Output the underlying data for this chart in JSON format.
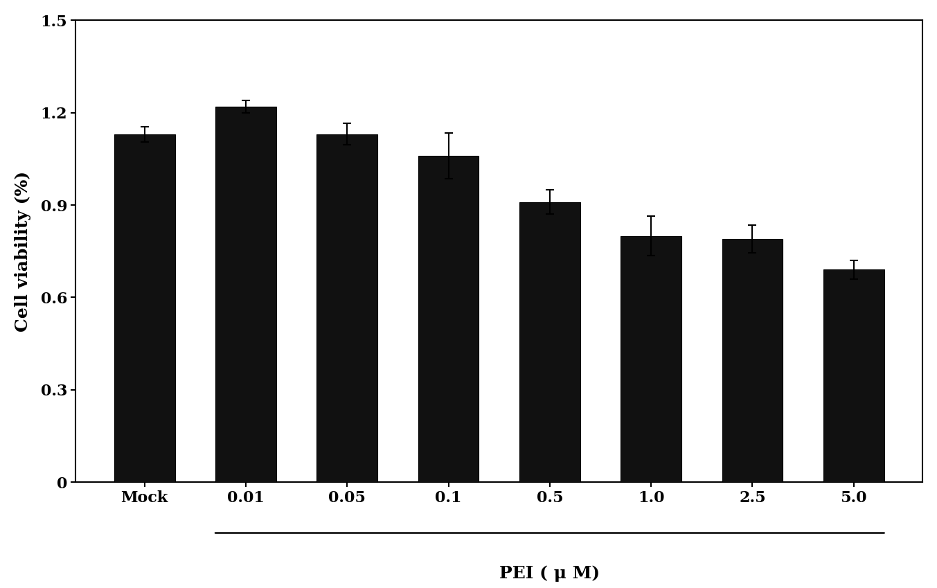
{
  "categories": [
    "Mock",
    "0.01",
    "0.05",
    "0.1",
    "0.5",
    "1.0",
    "2.5",
    "5.0"
  ],
  "values": [
    1.13,
    1.22,
    1.13,
    1.06,
    0.91,
    0.8,
    0.79,
    0.69
  ],
  "errors": [
    0.025,
    0.02,
    0.035,
    0.075,
    0.04,
    0.065,
    0.045,
    0.03
  ],
  "bar_color": "#111111",
  "edge_color": "#000000",
  "background_color": "#ffffff",
  "ylabel": "Cell viability (%)",
  "xlabel": "PEI ( μ M)",
  "ylim": [
    0,
    1.5
  ],
  "yticks": [
    0,
    0.3,
    0.6,
    0.9,
    1.2,
    1.5
  ],
  "ytick_labels": [
    "0",
    "0.3",
    "0.6",
    "0.9",
    "1.2",
    "1.5"
  ],
  "bar_width": 0.6,
  "capsize": 4,
  "elinewidth": 1.5,
  "ecapthick": 1.5,
  "ylabel_fontsize": 18,
  "xlabel_fontsize": 18,
  "tick_label_fontsize": 16
}
